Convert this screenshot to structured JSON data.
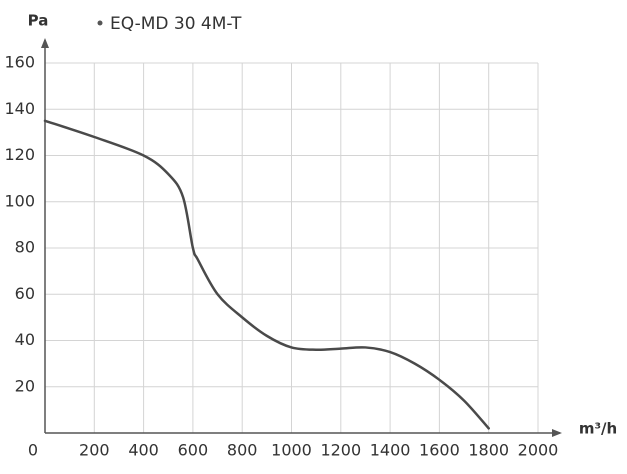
{
  "chart_data": {
    "type": "line",
    "x_label": "m³/h",
    "y_label": "Pa",
    "x": [
      0,
      200,
      400,
      500,
      560,
      600,
      620,
      700,
      800,
      900,
      1000,
      1100,
      1200,
      1300,
      1400,
      1500,
      1600,
      1700,
      1800
    ],
    "series": [
      {
        "name": "EQ-MD 30 4M-T",
        "color": "#4a4a4a",
        "values": [
          135,
          128,
          120,
          112,
          102,
          80,
          75,
          60,
          50,
          42,
          37,
          36,
          36.5,
          37,
          35,
          30,
          23,
          14,
          2
        ]
      }
    ],
    "xlim": [
      0,
      2000
    ],
    "xticks": [
      0,
      200,
      400,
      600,
      800,
      1000,
      1200,
      1400,
      1600,
      1800,
      2000
    ],
    "ylim": [
      0,
      160
    ],
    "yticks": [
      20,
      40,
      60,
      80,
      100,
      120,
      140,
      160
    ],
    "grid": true
  }
}
